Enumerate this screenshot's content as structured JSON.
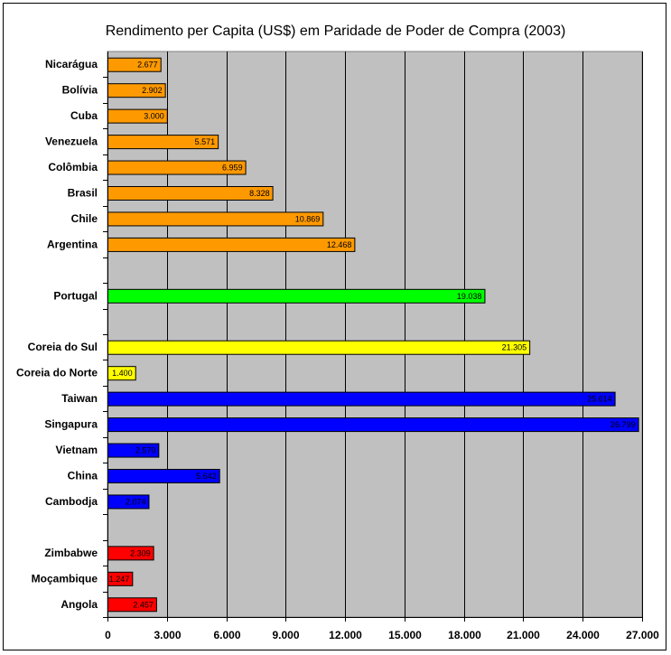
{
  "chart_data": {
    "type": "bar",
    "orientation": "horizontal",
    "title": "Rendimento per Capita (US$) em Paridade de Poder de Compra (2003)",
    "xlim": [
      0,
      27000
    ],
    "x_ticks": [
      "0",
      "3.000",
      "6.000",
      "9.000",
      "12.000",
      "15.000",
      "18.000",
      "21.000",
      "24.000",
      "27.000"
    ],
    "x_tick_values": [
      0,
      3000,
      6000,
      9000,
      12000,
      15000,
      18000,
      21000,
      24000,
      27000
    ],
    "grid": "vertical",
    "plot_background": "#c0c0c0",
    "categories": [
      "Nicarágua",
      "Bolívia",
      "Cuba",
      "Venezuela",
      "Colômbia",
      "Brasil",
      "Chile",
      "Argentina",
      "",
      "Portugal",
      "",
      "Coreia do Sul",
      "Coreia do Norte",
      "Taiwan",
      "Singapura",
      "Vietnam",
      "China",
      "Cambodja",
      "",
      "Zimbabwe",
      "Moçambique",
      "Angola"
    ],
    "values": [
      2677,
      2902,
      3000,
      5571,
      6959,
      8328,
      10869,
      12468,
      null,
      19038,
      null,
      21305,
      1400,
      25614,
      26799,
      2570,
      5642,
      2074,
      null,
      2309,
      1247,
      2457
    ],
    "labels": [
      "2.677",
      "2.902",
      "3.000",
      "5.571",
      "6.959",
      "8.328",
      "10.869",
      "12.468",
      "",
      "19.038",
      "",
      "21.305",
      "1.400",
      "25.614",
      "26.799",
      "2.570",
      "5.642",
      "2.074",
      "",
      "2.309",
      "1.247",
      "2.457"
    ],
    "colors": [
      "#ff9900",
      "#ff9900",
      "#ff9900",
      "#ff9900",
      "#ff9900",
      "#ff9900",
      "#ff9900",
      "#ff9900",
      "",
      "#00ff00",
      "",
      "#ffff00",
      "#ffff00",
      "#0000ff",
      "#0000ff",
      "#0000ff",
      "#0000ff",
      "#0000ff",
      "",
      "#ff0000",
      "#ff0000",
      "#ff0000"
    ]
  }
}
